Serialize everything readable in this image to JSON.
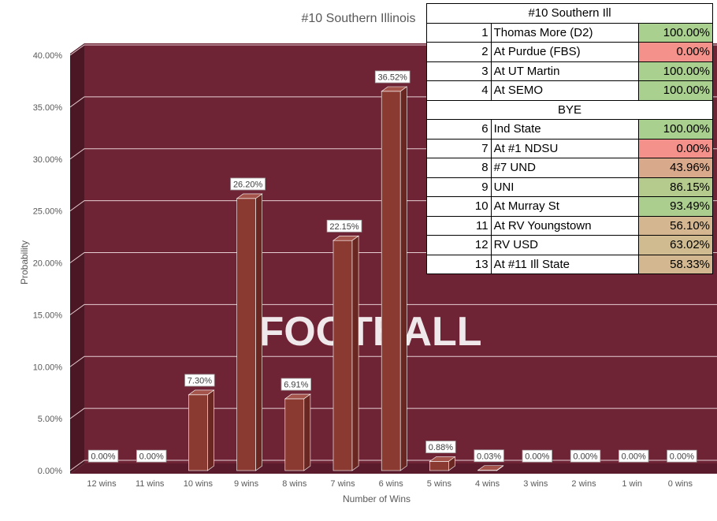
{
  "chart_data": {
    "type": "bar",
    "title": "#10 Southern Illinois",
    "xlabel": "Number of Wins",
    "ylabel": "Probability",
    "ylim": [
      0,
      40
    ],
    "y_ticks": [
      "0.00%",
      "5.00%",
      "10.00%",
      "15.00%",
      "20.00%",
      "25.00%",
      "30.00%",
      "35.00%",
      "40.00%"
    ],
    "categories": [
      "12 wins",
      "11 wins",
      "10 wins",
      "9 wins",
      "8 wins",
      "7 wins",
      "6 wins",
      "5 wins",
      "4 wins",
      "3 wins",
      "2 wins",
      "1 win",
      "0 wins"
    ],
    "values": [
      0.0,
      0.0,
      7.3,
      26.2,
      6.91,
      22.15,
      36.52,
      0.88,
      0.03,
      0.0,
      0.0,
      0.0,
      0.0
    ],
    "data_labels": [
      "0.00%",
      "0.00%",
      "7.30%",
      "26.20%",
      "6.91%",
      "22.15%",
      "36.52%",
      "0.88%",
      "0.03%",
      "0.00%",
      "0.00%",
      "0.00%",
      "0.00%"
    ],
    "grid": true,
    "colors": {
      "bar": "#8B3A32",
      "bar_top": "#A4534A",
      "bar_side": "#6A2620",
      "wall": "#6E2435",
      "wall_side": "#4C1725",
      "floor": "#5A1C2C",
      "gridline": "#E6CDD2"
    },
    "background_watermark": "FOOTBALL"
  },
  "schedule": {
    "header": "#10 Southern Ill",
    "bye_label": "BYE",
    "games": [
      {
        "num": "1",
        "opponent": "Thomas More (D2)",
        "pct": "100.00%",
        "color": "#A9D08E"
      },
      {
        "num": "2",
        "opponent": "At Purdue (FBS)",
        "pct": "0.00%",
        "color": "#F4918B"
      },
      {
        "num": "3",
        "opponent": "At UT Martin",
        "pct": "100.00%",
        "color": "#A9D08E"
      },
      {
        "num": "4",
        "opponent": "At SEMO",
        "pct": "100.00%",
        "color": "#A9D08E"
      },
      {
        "bye": true
      },
      {
        "num": "6",
        "opponent": "Ind State",
        "pct": "100.00%",
        "color": "#A9D08E"
      },
      {
        "num": "7",
        "opponent": "At #1 NDSU",
        "pct": "0.00%",
        "color": "#F4918B"
      },
      {
        "num": "8",
        "opponent": "#7 UND",
        "pct": "43.96%",
        "color": "#D9A98C"
      },
      {
        "num": "9",
        "opponent": "UNI",
        "pct": "86.15%",
        "color": "#B5CB8E"
      },
      {
        "num": "10",
        "opponent": "At Murray St",
        "pct": "93.49%",
        "color": "#ABCD8D"
      },
      {
        "num": "11",
        "opponent": "At RV Youngstown",
        "pct": "56.10%",
        "color": "#D4B690"
      },
      {
        "num": "12",
        "opponent": "RV USD",
        "pct": "63.02%",
        "color": "#CFBB8F"
      },
      {
        "num": "13",
        "opponent": "At #11 Ill State",
        "pct": "58.33%",
        "color": "#D2B790"
      }
    ]
  }
}
